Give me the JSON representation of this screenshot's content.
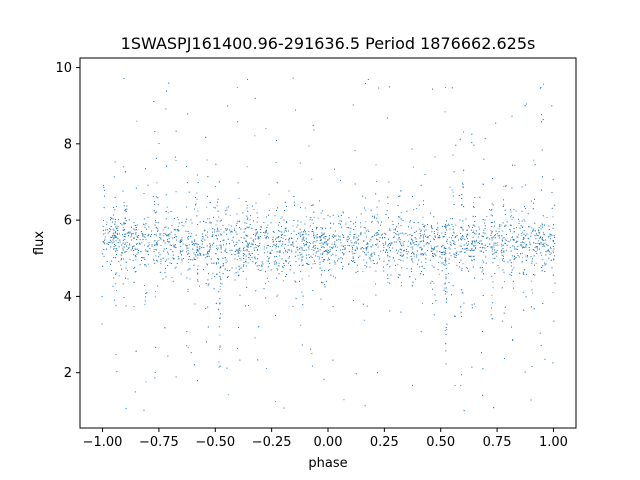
{
  "chart_data": {
    "type": "scatter",
    "title": "1SWASPJ161400.96-291636.5 Period 1876662.625s",
    "xlabel": "phase",
    "ylabel": "flux",
    "xlim": [
      -1.1,
      1.1
    ],
    "ylim": [
      0.55,
      10.25
    ],
    "xticks": [
      -1.0,
      -0.75,
      -0.5,
      -0.25,
      0.0,
      0.25,
      0.5,
      0.75,
      1.0
    ],
    "xtick_labels": [
      "−1.00",
      "−0.75",
      "−0.50",
      "−0.25",
      "0.00",
      "0.25",
      "0.50",
      "0.75",
      "1.00"
    ],
    "yticks": [
      2,
      4,
      6,
      8,
      10
    ],
    "ytick_labels": [
      "2",
      "4",
      "6",
      "8",
      "10"
    ],
    "grid": false,
    "legend": "none",
    "marker_color": "#1f77b4",
    "series": [
      {
        "x_range": [
          -1.0,
          1.0
        ],
        "flux_core_mean": 5.4,
        "flux_core_spread": 0.35,
        "flux_band_range": [
          4.0,
          6.6
        ],
        "outlier_range": [
          1.0,
          9.8
        ],
        "dips": [
          {
            "phase": -0.48,
            "flux_min": 2.1
          },
          {
            "phase": 0.52,
            "flux_min": 2.2
          }
        ]
      }
    ]
  }
}
